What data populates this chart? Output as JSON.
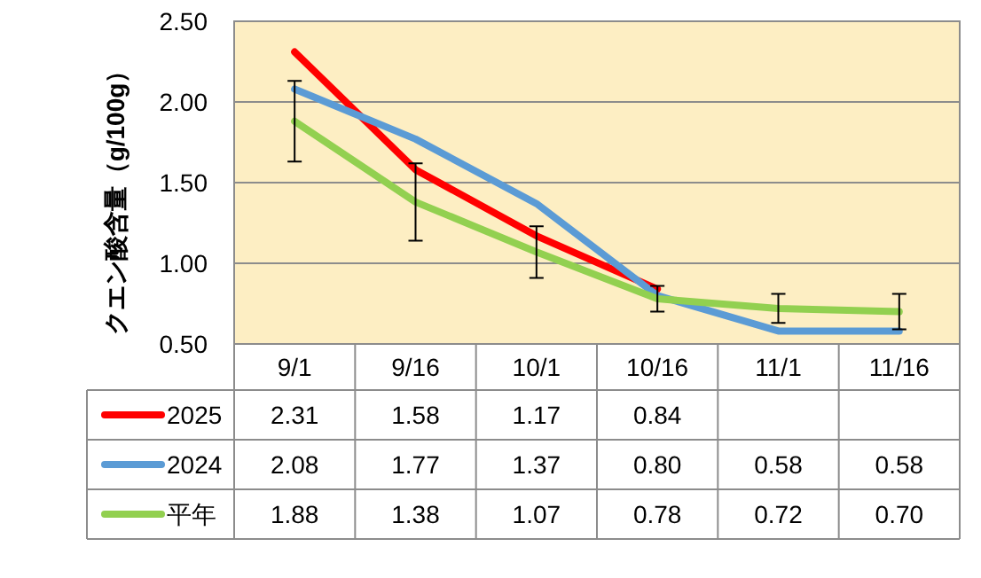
{
  "chart_data": {
    "type": "line",
    "ylabel": "クエン酸含量（g/100g）",
    "categories": [
      "9/1",
      "9/16",
      "10/1",
      "10/16",
      "11/1",
      "11/16"
    ],
    "series": [
      {
        "name": "2025",
        "color": "#ff0000",
        "values": [
          2.31,
          1.58,
          1.17,
          0.84,
          null,
          null
        ],
        "value_labels": [
          "2.31",
          "1.58",
          "1.17",
          "0.84",
          null,
          null
        ]
      },
      {
        "name": "2024",
        "color": "#5b9bd5",
        "values": [
          2.08,
          1.77,
          1.37,
          0.8,
          0.58,
          0.58
        ],
        "value_labels": [
          "2.08",
          "1.77",
          "1.37",
          "0.80",
          "0.58",
          "0.58"
        ]
      },
      {
        "name": "平年",
        "color": "#92d050",
        "values": [
          1.88,
          1.38,
          1.07,
          0.78,
          0.72,
          0.7
        ],
        "errors": [
          0.25,
          0.24,
          0.16,
          0.08,
          0.09,
          0.11
        ],
        "value_labels": [
          "1.88",
          "1.38",
          "1.07",
          "0.78",
          "0.72",
          "0.70"
        ]
      }
    ],
    "ylim": [
      0.5,
      2.5
    ],
    "yticks": [
      {
        "value": 0.5,
        "label": "0.50"
      },
      {
        "value": 1,
        "label": "1.00"
      },
      {
        "value": 1.5,
        "label": "1.50"
      },
      {
        "value": 2,
        "label": "2.00"
      },
      {
        "value": 2.5,
        "label": "2.50"
      }
    ],
    "grid": "y",
    "legend": "bottom"
  }
}
